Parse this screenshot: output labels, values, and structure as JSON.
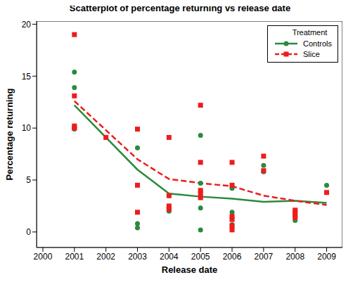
{
  "chart_data": {
    "type": "scatter",
    "title": "Scatterplot of percentage returning vs release date",
    "x_label": "Release date",
    "y_label": "Percentage returning",
    "legend_title": "Treatment",
    "legend": "upper right",
    "grid": false,
    "xlim": [
      1999.8,
      2009.5
    ],
    "xticks": [
      2000,
      2001,
      2002,
      2003,
      2004,
      2005,
      2006,
      2007,
      2008,
      2009
    ],
    "ylim": [
      -1.5,
      20.3
    ],
    "yticks": [
      0,
      5,
      10,
      15,
      20
    ],
    "series": [
      {
        "name": "Controls",
        "color": "#2b8a3e",
        "marker": "circle",
        "line_style": "solid",
        "x": [
          2001,
          2001,
          2001,
          2001,
          2003,
          2003,
          2003,
          2004,
          2004,
          2005,
          2005,
          2005,
          2005,
          2006,
          2006,
          2006,
          2007,
          2007,
          2008,
          2009
        ],
        "values": [
          15.4,
          13.9,
          10.0,
          9.9,
          8.1,
          0.8,
          0.4,
          3.5,
          2.0,
          9.3,
          4.7,
          2.3,
          0.2,
          4.2,
          1.9,
          0.7,
          6.4,
          5.8,
          1.1,
          4.5
        ],
        "mean_x": [
          2001,
          2003,
          2004,
          2005,
          2006,
          2007,
          2008,
          2009
        ],
        "mean": [
          12.2,
          6.0,
          3.7,
          3.4,
          3.2,
          2.9,
          3.0,
          2.8
        ]
      },
      {
        "name": "Slice",
        "color": "#ee1c1c",
        "marker": "square",
        "line_style": "dashed",
        "x": [
          2001,
          2001,
          2001,
          2001,
          2002,
          2003,
          2003,
          2003,
          2004,
          2004,
          2004,
          2004,
          2004,
          2005,
          2005,
          2005,
          2005,
          2005,
          2006,
          2006,
          2006,
          2006,
          2006,
          2006,
          2007,
          2007,
          2008,
          2008,
          2008,
          2008,
          2009
        ],
        "values": [
          19.0,
          13.1,
          10.2,
          10.0,
          9.1,
          9.9,
          4.5,
          1.9,
          9.1,
          3.5,
          2.5,
          2.3,
          2.2,
          12.2,
          6.7,
          4.0,
          3.7,
          3.3,
          6.7,
          4.5,
          1.5,
          1.2,
          0.6,
          0.2,
          7.3,
          5.9,
          2.1,
          1.9,
          1.6,
          1.4,
          3.8
        ],
        "mean_x": [
          2001,
          2003,
          2004,
          2005,
          2006,
          2007,
          2008,
          2009
        ],
        "mean": [
          12.6,
          7.0,
          5.1,
          4.7,
          4.4,
          3.5,
          3.0,
          2.6
        ]
      }
    ]
  }
}
